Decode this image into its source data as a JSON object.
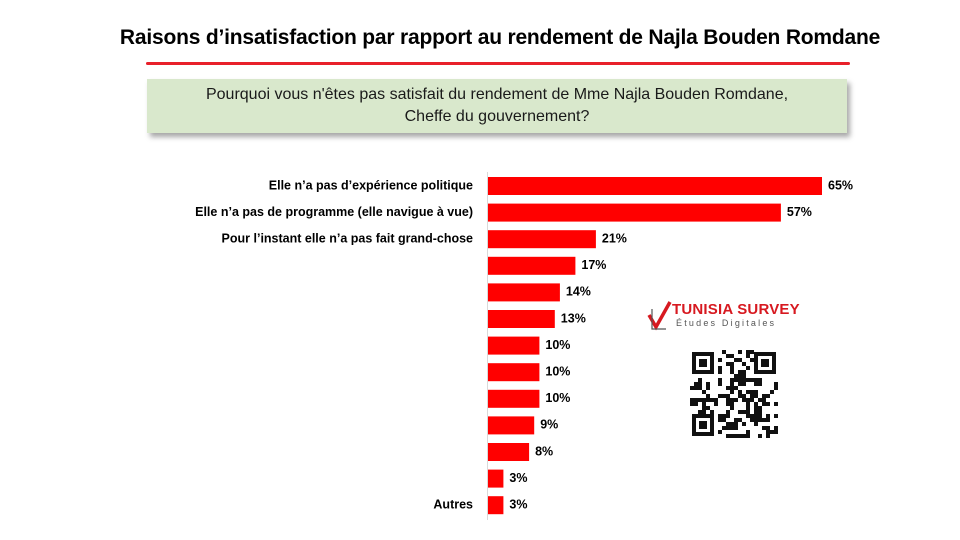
{
  "header": {
    "title": "Raisons d’insatisfaction par rapport au rendement  de Najla Bouden Romdane"
  },
  "question": {
    "text": "Pourquoi vous n'êtes pas satisfait du rendement de Mme Najla Bouden Romdane,\nCheffe du gouvernement?"
  },
  "logo": {
    "name": "TUNISIA SURVEY",
    "subtitle": "Études Digitales"
  },
  "colors": {
    "bar": "#ff0000",
    "accent": "#e8202a",
    "question_bg": "#d9e8cc"
  },
  "chart_data": {
    "type": "bar",
    "orientation": "horizontal",
    "categories": [
      "Elle n’a pas d’expérience politique",
      "Elle n’a pas de programme (elle navigue à vue)",
      "Pour l’instant elle n’a pas fait grand-chose",
      "",
      "",
      "",
      "",
      "",
      "",
      "",
      "",
      "",
      "Autres"
    ],
    "values": [
      65,
      57,
      21,
      17,
      14,
      13,
      10,
      10,
      10,
      9,
      8,
      3,
      3
    ],
    "value_labels": [
      "65%",
      "57%",
      "21%",
      "17%",
      "14%",
      "13%",
      "10%",
      "10%",
      "10%",
      "9%",
      "8%",
      "3%",
      "3%"
    ],
    "unit": "%",
    "xlim": [
      0,
      65
    ],
    "grid": false,
    "legend": "none"
  }
}
